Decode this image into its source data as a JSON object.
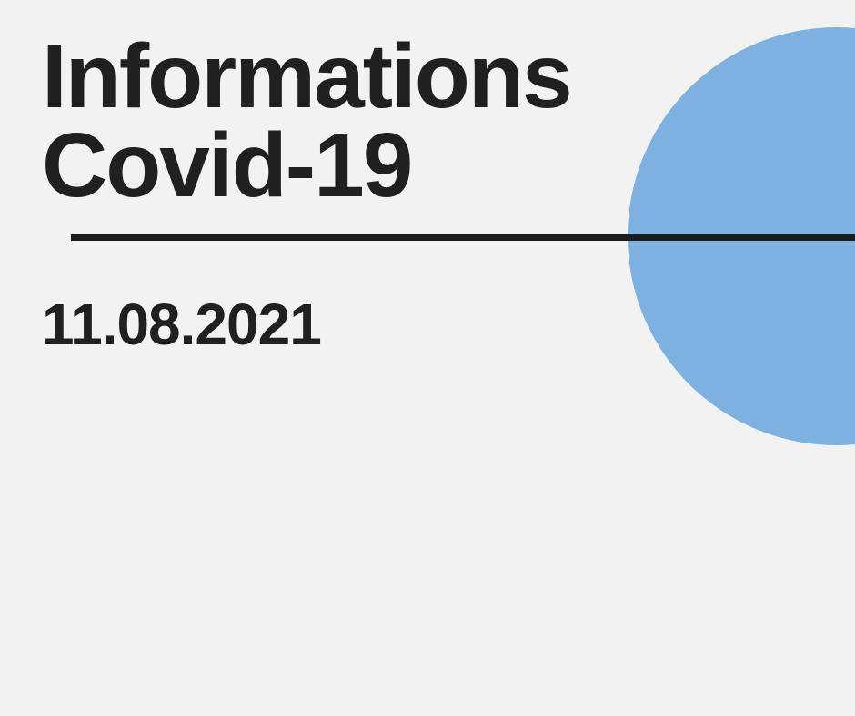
{
  "document": {
    "title_line1": "Informations",
    "title_line2": "Covid-19",
    "date": "11.08.2021"
  },
  "colors": {
    "background": "#f2f2f2",
    "text": "#202020",
    "divider": "#1c1c1c",
    "circle": "#7eb1e0"
  }
}
